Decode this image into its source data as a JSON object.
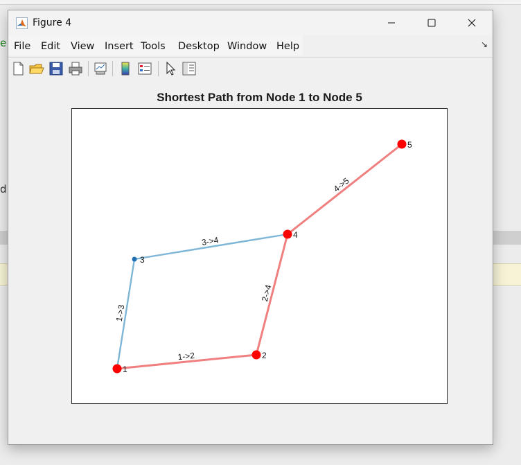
{
  "background": {
    "fragment_e": "e",
    "fragment_d": "d"
  },
  "window": {
    "title": "Figure 4",
    "app_icon": "matlab-logo-icon",
    "controls": [
      "minimize-icon",
      "maximize-icon",
      "close-icon"
    ]
  },
  "menubar": {
    "items": [
      "File",
      "Edit",
      "View",
      "Insert",
      "Tools",
      "Desktop",
      "Window",
      "Help"
    ],
    "dock_icon": "dock-arrow-icon",
    "dock_glyph": "↘"
  },
  "toolbar": {
    "tools": [
      "new-figure-icon",
      "open-file-icon",
      "save-icon",
      "print-icon",
      "link-plot-icon",
      "insert-colorbar-icon",
      "insert-legend-icon",
      "edit-plot-pointer-icon",
      "property-inspector-icon"
    ]
  },
  "colors": {
    "path_edge": "#f08080",
    "path_node": "#ff0000",
    "other_edge": "#7eb6d6",
    "other_node": "#1f6fb2"
  },
  "plot": {
    "title": "Shortest Path from Node 1 to Node 5",
    "nodes": [
      {
        "id": "1",
        "on_path": true
      },
      {
        "id": "2",
        "on_path": true
      },
      {
        "id": "3",
        "on_path": false
      },
      {
        "id": "4",
        "on_path": true
      },
      {
        "id": "5",
        "on_path": true
      }
    ],
    "edges": [
      {
        "from": "1",
        "to": "2",
        "label": "1->2",
        "on_path": true
      },
      {
        "from": "1",
        "to": "3",
        "label": "1->3",
        "on_path": false
      },
      {
        "from": "2",
        "to": "4",
        "label": "2->4",
        "on_path": true
      },
      {
        "from": "3",
        "to": "4",
        "label": "3->4",
        "on_path": false
      },
      {
        "from": "4",
        "to": "5",
        "label": "4->5",
        "on_path": true
      }
    ]
  }
}
